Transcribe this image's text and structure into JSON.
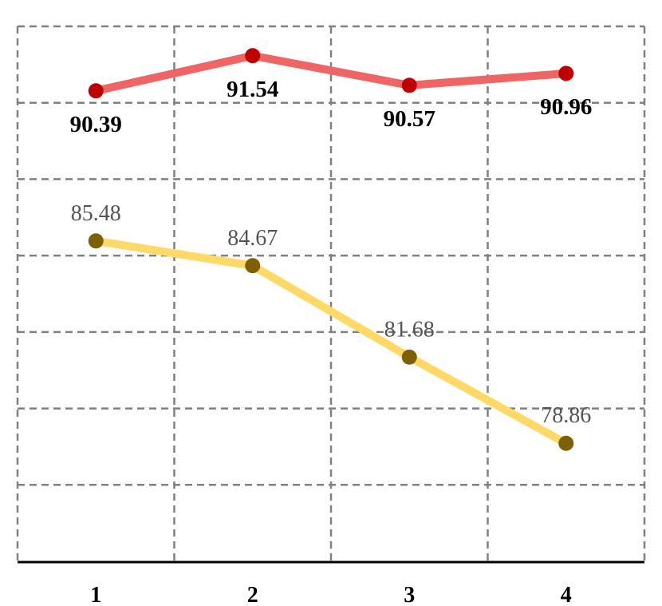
{
  "chart_data": {
    "type": "line",
    "x": [
      1,
      2,
      3,
      4
    ],
    "x_tick_labels": [
      "1",
      "2",
      "3",
      "4"
    ],
    "ylim": [
      75,
      92.5
    ],
    "grid": true,
    "grid_style": "dashed",
    "series": [
      {
        "values": [
          90.39,
          91.54,
          90.57,
          90.96
        ],
        "data_labels": [
          "90.39",
          "91.54",
          "90.57",
          "90.96"
        ],
        "line_color": "#f06464",
        "marker_color": "#c00000",
        "label_style": "bold",
        "label_position": [
          "below",
          "below",
          "below",
          "below"
        ]
      },
      {
        "values": [
          85.48,
          84.67,
          81.68,
          78.86
        ],
        "data_labels": [
          "85.48",
          "84.67",
          "81.68",
          "78.86"
        ],
        "line_color": "#ffd966",
        "marker_color": "#7f6000",
        "label_style": "light",
        "label_position": [
          "above",
          "above",
          "above",
          "above"
        ]
      }
    ]
  }
}
